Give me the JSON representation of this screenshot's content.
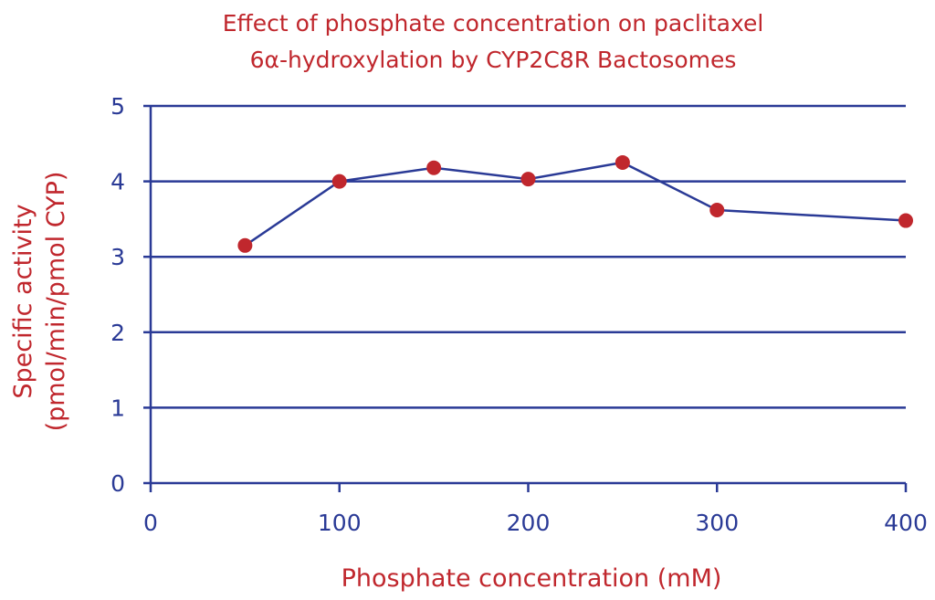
{
  "chart_data": {
    "type": "line",
    "title_lines": [
      "Effect of phosphate concentration on paclitaxel",
      "6α-hydroxylation by CYP2C8R Bactosomes"
    ],
    "xlabel": "Phosphate concentration (mM)",
    "ylabel_lines": [
      "Specific activity",
      "(pmol/min/pmol CYP)"
    ],
    "xlim": [
      0,
      400
    ],
    "ylim": [
      0,
      5
    ],
    "x_ticks": [
      0,
      100,
      200,
      300,
      400
    ],
    "x_tick_labels": [
      "0",
      "100",
      "200",
      "300",
      "400"
    ],
    "y_ticks": [
      0,
      1,
      2,
      3,
      4,
      5
    ],
    "y_tick_labels": [
      "0",
      "1",
      "2",
      "3",
      "4",
      "5"
    ],
    "grid": "horizontal",
    "legend": "none",
    "series": [
      {
        "x": [
          50,
          100,
          150,
          200,
          250,
          300,
          400
        ],
        "y": [
          3.15,
          4.0,
          4.18,
          4.03,
          4.25,
          3.62,
          3.48
        ]
      }
    ],
    "colors": {
      "text_red": "#c0272d",
      "axis_blue": "#2a3a96",
      "marker": "#c0272d",
      "line": "#2a3a96"
    }
  }
}
